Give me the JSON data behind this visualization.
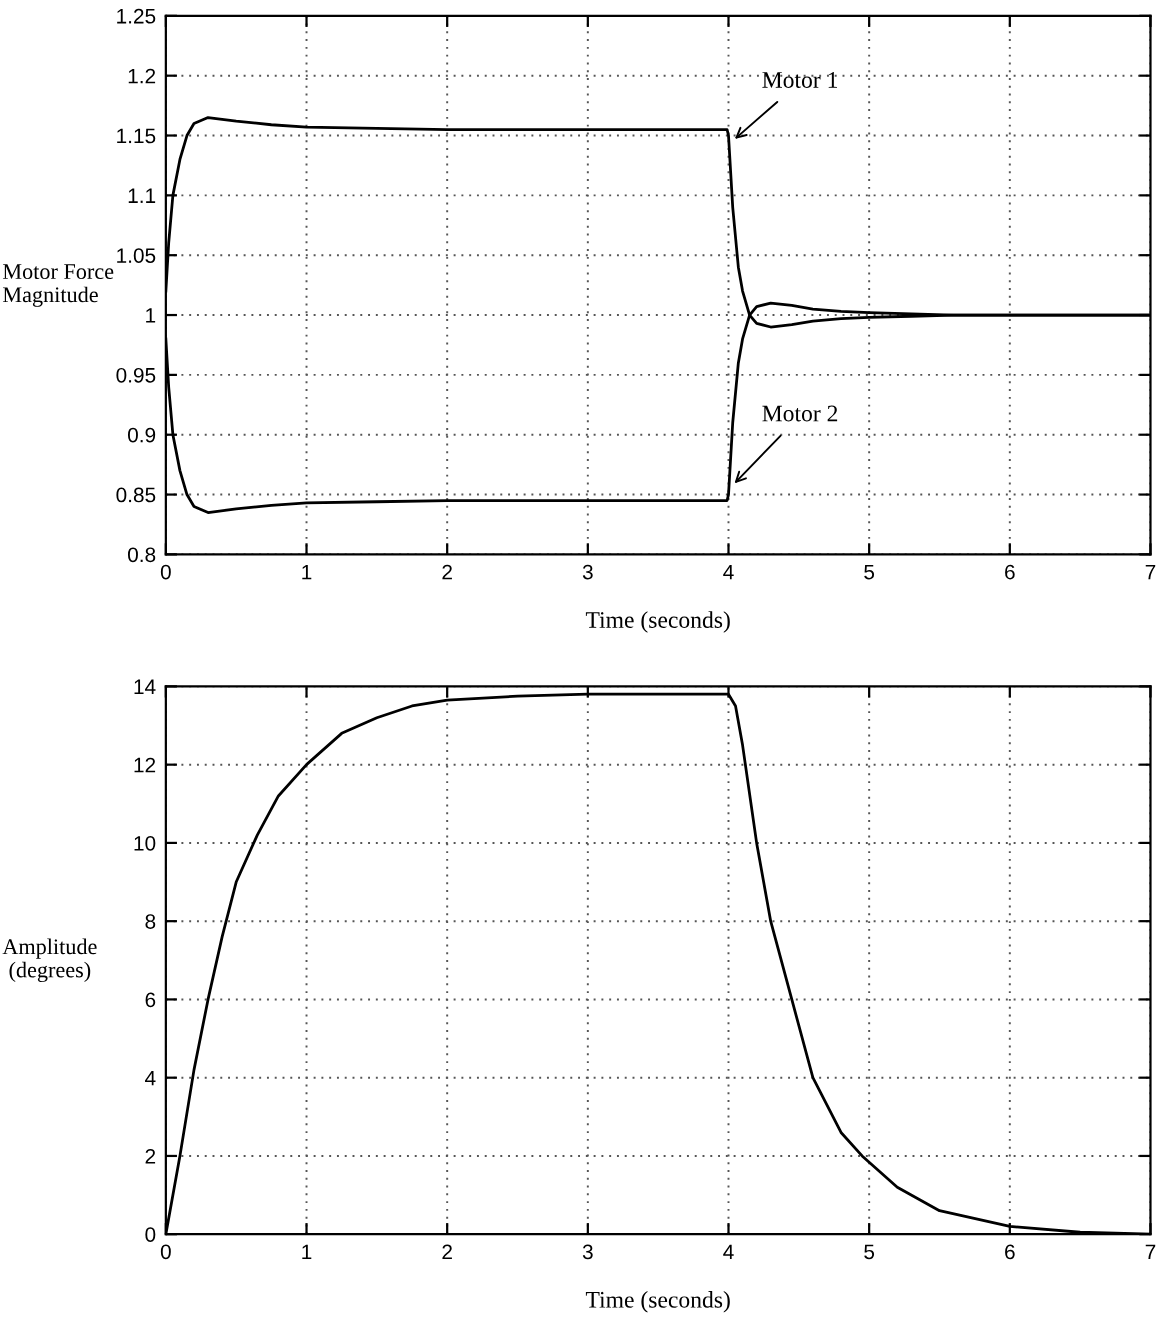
{
  "chart_data": [
    {
      "type": "line",
      "xlabel": "Time (seconds)",
      "ylabel": "Motor Force\nMagnitude",
      "xlim": [
        0,
        7
      ],
      "xticks": [
        0,
        1,
        2,
        3,
        4,
        5,
        6,
        7
      ],
      "ylim": [
        0.8,
        1.25
      ],
      "yticks": [
        0.8,
        0.85,
        0.9,
        0.95,
        1,
        1.05,
        1.1,
        1.15,
        1.2,
        1.25
      ],
      "grid": true,
      "series": [
        {
          "name": "Motor 1",
          "color": "#000000",
          "x": [
            0,
            0.02,
            0.05,
            0.1,
            0.15,
            0.2,
            0.3,
            0.5,
            0.75,
            1,
            1.5,
            2,
            3,
            3.99,
            4.0,
            4.03,
            4.07,
            4.1,
            4.15,
            4.2,
            4.3,
            4.45,
            4.6,
            4.8,
            5,
            5.3,
            5.6,
            6,
            7
          ],
          "values": [
            1.02,
            1.06,
            1.1,
            1.13,
            1.15,
            1.16,
            1.165,
            1.162,
            1.159,
            1.157,
            1.156,
            1.155,
            1.155,
            1.155,
            1.15,
            1.09,
            1.04,
            1.02,
            1.0,
            0.993,
            0.99,
            0.992,
            0.995,
            0.997,
            0.998,
            0.999,
            1.0,
            1.0,
            1.0
          ]
        },
        {
          "name": "Motor 2",
          "color": "#000000",
          "x": [
            0,
            0.02,
            0.05,
            0.1,
            0.15,
            0.2,
            0.3,
            0.5,
            0.75,
            1,
            1.5,
            2,
            3,
            3.99,
            4.0,
            4.03,
            4.07,
            4.1,
            4.15,
            4.2,
            4.3,
            4.45,
            4.6,
            4.8,
            5,
            5.3,
            5.6,
            6,
            7
          ],
          "values": [
            0.98,
            0.94,
            0.9,
            0.87,
            0.85,
            0.84,
            0.835,
            0.838,
            0.841,
            0.843,
            0.844,
            0.845,
            0.845,
            0.845,
            0.85,
            0.91,
            0.96,
            0.98,
            1.0,
            1.007,
            1.01,
            1.008,
            1.005,
            1.003,
            1.002,
            1.001,
            1.0,
            1.0,
            1.0
          ]
        }
      ]
    },
    {
      "type": "line",
      "xlabel": "Time (seconds)",
      "ylabel": "Amplitude\n(degrees)",
      "xlim": [
        0,
        7
      ],
      "xticks": [
        0,
        1,
        2,
        3,
        4,
        5,
        6,
        7
      ],
      "ylim": [
        0,
        14
      ],
      "yticks": [
        0,
        2,
        4,
        6,
        8,
        10,
        12,
        14
      ],
      "grid": true,
      "series": [
        {
          "color": "#000000",
          "x": [
            0,
            0.1,
            0.2,
            0.3,
            0.4,
            0.5,
            0.65,
            0.8,
            1,
            1.25,
            1.5,
            1.75,
            2,
            2.5,
            3,
            4,
            4.05,
            4.1,
            4.2,
            4.3,
            4.45,
            4.6,
            4.8,
            4.95,
            5.2,
            5.5,
            6,
            6.5,
            7
          ],
          "values": [
            0,
            2,
            4.2,
            6,
            7.6,
            9,
            10.2,
            11.2,
            12,
            12.8,
            13.2,
            13.5,
            13.65,
            13.75,
            13.8,
            13.8,
            13.5,
            12.5,
            10,
            8,
            6,
            4,
            2.6,
            2,
            1.2,
            0.6,
            0.2,
            0.05,
            0
          ]
        }
      ]
    }
  ]
}
